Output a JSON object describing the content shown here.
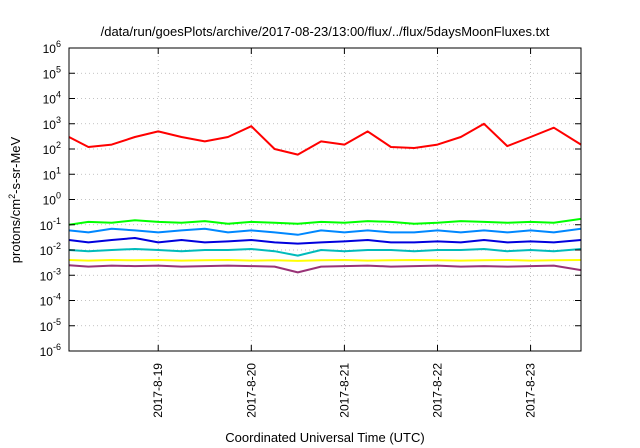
{
  "chart_data": {
    "type": "line",
    "title": "/data/run/goesPlots/archive/2017-08-23/13:00/flux/../flux/5daysMoonFluxes.txt",
    "xlabel": "Coordinated Universal Time (UTC)",
    "ylabel": "protons/cm2-s-sr-MeV",
    "ylabel_parts": [
      "protons/cm",
      "2",
      "-s-sr-MeV"
    ],
    "yscale": "log",
    "ylim": [
      1e-06,
      1000000.0
    ],
    "xlim": [
      "2017-08-18 01:00",
      "2017-08-23 13:00"
    ],
    "grid": true,
    "legend": "none",
    "x_ticks": [
      "2017-8-19",
      "2017-8-20",
      "2017-8-21",
      "2017-8-22",
      "2017-8-23"
    ],
    "y_ticks": [
      {
        "base": "10",
        "exp": "-6"
      },
      {
        "base": "10",
        "exp": "-5"
      },
      {
        "base": "10",
        "exp": "-4"
      },
      {
        "base": "10",
        "exp": "-3"
      },
      {
        "base": "10",
        "exp": "-2"
      },
      {
        "base": "10",
        "exp": "-1"
      },
      {
        "base": "10",
        "exp": "0"
      },
      {
        "base": "10",
        "exp": "1"
      },
      {
        "base": "10",
        "exp": "2"
      },
      {
        "base": "10",
        "exp": "3"
      },
      {
        "base": "10",
        "exp": "4"
      },
      {
        "base": "10",
        "exp": "5"
      },
      {
        "base": "10",
        "exp": "6"
      }
    ],
    "x": [
      "2017-08-18 01:00",
      "2017-08-18 06:00",
      "2017-08-18 12:00",
      "2017-08-18 18:00",
      "2017-08-19 00:00",
      "2017-08-19 06:00",
      "2017-08-19 12:00",
      "2017-08-19 18:00",
      "2017-08-20 00:00",
      "2017-08-20 06:00",
      "2017-08-20 12:00",
      "2017-08-20 18:00",
      "2017-08-21 00:00",
      "2017-08-21 06:00",
      "2017-08-21 12:00",
      "2017-08-21 18:00",
      "2017-08-22 00:00",
      "2017-08-22 06:00",
      "2017-08-22 12:00",
      "2017-08-22 18:00",
      "2017-08-23 00:00",
      "2017-08-23 06:00",
      "2017-08-23 13:00"
    ],
    "series": [
      {
        "color": "#ff0000",
        "values": [
          300,
          120,
          150,
          300,
          500,
          300,
          200,
          300,
          800,
          100,
          60,
          200,
          150,
          500,
          120,
          110,
          150,
          300,
          1000,
          130,
          300,
          700,
          150
        ]
      },
      {
        "color": "#00ff00",
        "values": [
          0.1,
          0.13,
          0.12,
          0.15,
          0.13,
          0.12,
          0.14,
          0.11,
          0.13,
          0.12,
          0.11,
          0.13,
          0.12,
          0.14,
          0.13,
          0.11,
          0.12,
          0.14,
          0.13,
          0.12,
          0.13,
          0.12,
          0.17
        ]
      },
      {
        "color": "#0088ff",
        "values": [
          0.06,
          0.05,
          0.07,
          0.06,
          0.05,
          0.06,
          0.07,
          0.05,
          0.06,
          0.05,
          0.04,
          0.06,
          0.05,
          0.06,
          0.05,
          0.05,
          0.06,
          0.05,
          0.06,
          0.05,
          0.06,
          0.05,
          0.07
        ]
      },
      {
        "color": "#0000dd",
        "values": [
          0.025,
          0.02,
          0.025,
          0.03,
          0.02,
          0.025,
          0.02,
          0.022,
          0.025,
          0.02,
          0.018,
          0.02,
          0.022,
          0.025,
          0.02,
          0.02,
          0.022,
          0.02,
          0.025,
          0.02,
          0.022,
          0.02,
          0.025
        ]
      },
      {
        "color": "#00bbbb",
        "values": [
          0.01,
          0.009,
          0.01,
          0.011,
          0.01,
          0.009,
          0.01,
          0.01,
          0.011,
          0.009,
          0.006,
          0.01,
          0.009,
          0.01,
          0.01,
          0.009,
          0.01,
          0.01,
          0.011,
          0.009,
          0.01,
          0.009,
          0.011
        ]
      },
      {
        "color": "#ffff00",
        "values": [
          0.004,
          0.0038,
          0.004,
          0.0039,
          0.004,
          0.0038,
          0.0039,
          0.004,
          0.0038,
          0.0039,
          0.0037,
          0.0039,
          0.004,
          0.0038,
          0.0039,
          0.004,
          0.0039,
          0.0038,
          0.0039,
          0.004,
          0.0038,
          0.0039,
          0.004
        ]
      },
      {
        "color": "#993377",
        "values": [
          0.0025,
          0.0022,
          0.0024,
          0.0023,
          0.0024,
          0.0022,
          0.0023,
          0.0024,
          0.0023,
          0.0022,
          0.0013,
          0.0022,
          0.0023,
          0.0024,
          0.0022,
          0.0023,
          0.0024,
          0.0022,
          0.0023,
          0.0022,
          0.0023,
          0.0024,
          0.0016
        ]
      }
    ]
  }
}
